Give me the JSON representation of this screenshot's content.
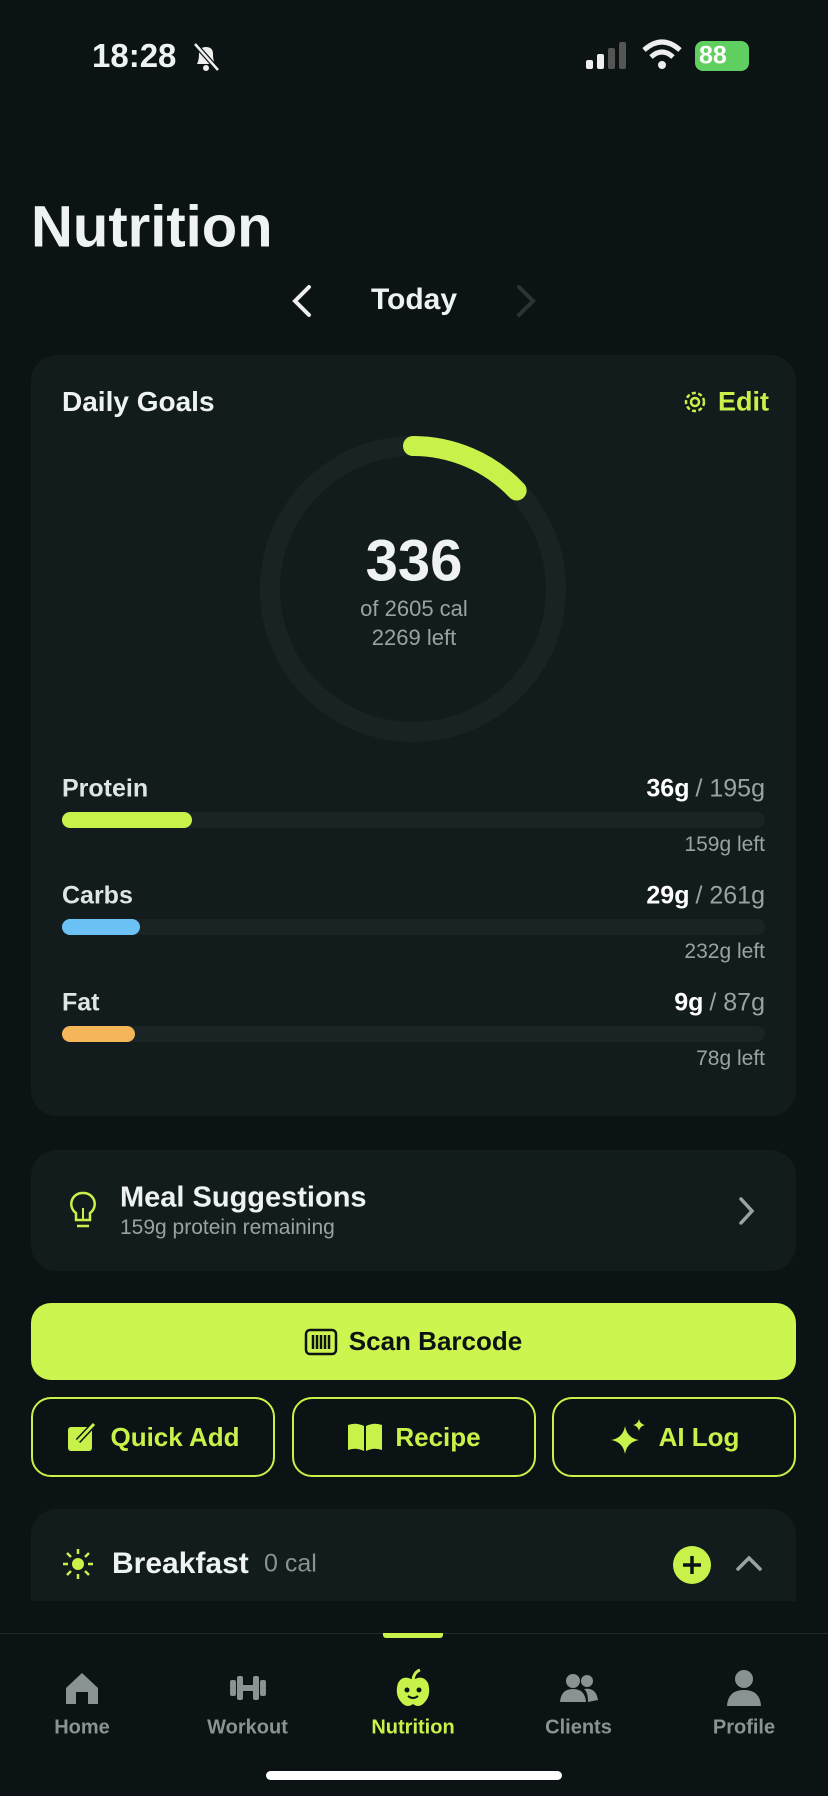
{
  "status_bar": {
    "time": "18:28",
    "battery": "88"
  },
  "header": {
    "title": "Nutrition",
    "date": "Today"
  },
  "daily_goals": {
    "title": "Daily Goals",
    "edit": "Edit",
    "calories": {
      "consumed": "336",
      "goal": "of 2605 cal",
      "left": "2269 left"
    },
    "macros": [
      {
        "name": "Protein",
        "consumed": "36g",
        "goal": "/ 195g",
        "left": "159g left",
        "color": "#c8f24a"
      },
      {
        "name": "Carbs",
        "consumed": "29g",
        "goal": "/ 261g",
        "left": "232g left",
        "color": "#6cc1f5"
      },
      {
        "name": "Fat",
        "consumed": "9g",
        "goal": "/ 87g",
        "left": "78g left",
        "color": "#f5b65a"
      }
    ]
  },
  "meal_suggestions": {
    "title": "Meal Suggestions",
    "subtitle": "159g protein remaining"
  },
  "actions": {
    "primary": "Scan Barcode",
    "secondary": [
      "Quick Add",
      "Recipe",
      "AI Log"
    ]
  },
  "meals": [
    {
      "name": "Breakfast",
      "calories": "0 cal"
    }
  ],
  "tab_bar": {
    "tabs": [
      "Home",
      "Workout",
      "Nutrition",
      "Clients",
      "Profile"
    ],
    "active": 2
  }
}
